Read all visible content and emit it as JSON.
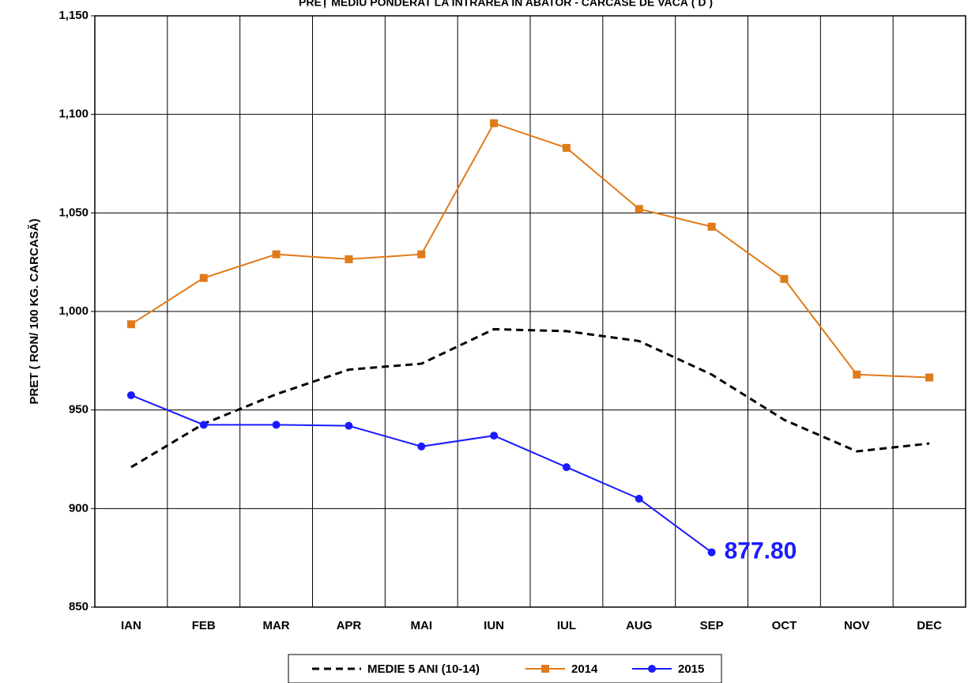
{
  "chart_data": {
    "type": "line",
    "title": "PREȚ MEDIU PONDERAT LA INTRAREA ÎN ABATOR - CARCASE DE VACĂ ( D )",
    "y_label": "PRET ( RON/ 100 KG. CARCASĂ)",
    "categories": [
      "IAN",
      "FEB",
      "MAR",
      "APR",
      "MAI",
      "IUN",
      "IUL",
      "AUG",
      "SEP",
      "OCT",
      "NOV",
      "DEC"
    ],
    "series": [
      {
        "name": "MEDIE 5 ANI (10-14)",
        "color": "#000000",
        "dash": true,
        "marker": "none",
        "values": [
          921,
          943,
          958,
          970.5,
          973.5,
          991,
          990,
          985,
          968,
          945,
          929,
          933
        ]
      },
      {
        "name": "2014",
        "color": "#e07b1a",
        "marker": "square",
        "values": [
          993.5,
          1017,
          1029,
          1026.5,
          1029,
          1095.5,
          1083,
          1052,
          1043,
          1016.5,
          968,
          966.5
        ]
      },
      {
        "name": "2015",
        "color": "#1a1aff",
        "marker": "circle",
        "values": [
          957.5,
          942.5,
          942.5,
          942,
          931.5,
          937,
          921,
          905,
          877.8,
          null,
          null,
          null
        ],
        "value_labels": [
          null,
          null,
          null,
          null,
          null,
          null,
          null,
          null,
          "877.80",
          null,
          null,
          null
        ]
      }
    ],
    "ylim": [
      850,
      1150
    ],
    "yticks": [
      {
        "value": 1150,
        "label": "1,150"
      },
      {
        "value": 1100,
        "label": "1,100"
      },
      {
        "value": 1050,
        "label": "1,050"
      },
      {
        "value": 1000,
        "label": "1,000"
      },
      950,
      900,
      850
    ],
    "grid": true,
    "legend": "bottom"
  }
}
